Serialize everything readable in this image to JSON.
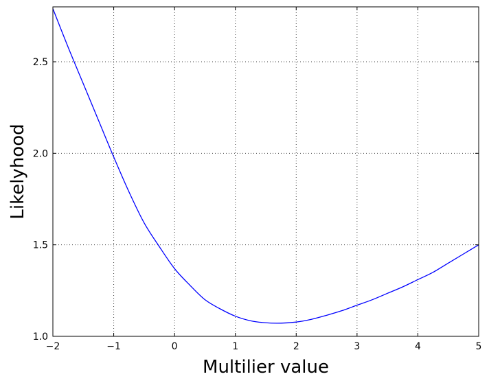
{
  "chart_data": {
    "type": "line",
    "title": "",
    "xlabel": "Multilier value",
    "ylabel": "Likelyhood",
    "xlim": [
      -2,
      5
    ],
    "ylim": [
      1.0,
      2.8
    ],
    "grid": true,
    "x_ticks": [
      -2,
      -1,
      0,
      1,
      2,
      3,
      4,
      5
    ],
    "x_tick_labels": [
      "−2",
      "−1",
      "0",
      "1",
      "2",
      "3",
      "4",
      "5"
    ],
    "y_ticks": [
      1.0,
      1.5,
      2.0,
      2.5
    ],
    "y_tick_labels": [
      "1.0",
      "1.5",
      "2.0",
      "2.5"
    ],
    "series": [
      {
        "color": "#0000ff",
        "x": [
          -2,
          -1.75,
          -1.5,
          -1.25,
          -1,
          -0.75,
          -0.5,
          -0.25,
          0,
          0.25,
          0.5,
          0.75,
          1,
          1.25,
          1.5,
          1.75,
          2,
          2.25,
          2.5,
          2.75,
          3,
          3.25,
          3.5,
          3.75,
          4,
          4.25,
          4.5,
          4.75,
          5
        ],
        "y": [
          2.79,
          2.58,
          2.38,
          2.18,
          1.98,
          1.79,
          1.62,
          1.49,
          1.37,
          1.28,
          1.2,
          1.15,
          1.11,
          1.085,
          1.074,
          1.072,
          1.078,
          1.093,
          1.115,
          1.14,
          1.17,
          1.2,
          1.235,
          1.27,
          1.31,
          1.35,
          1.4,
          1.45,
          1.5
        ]
      }
    ]
  }
}
